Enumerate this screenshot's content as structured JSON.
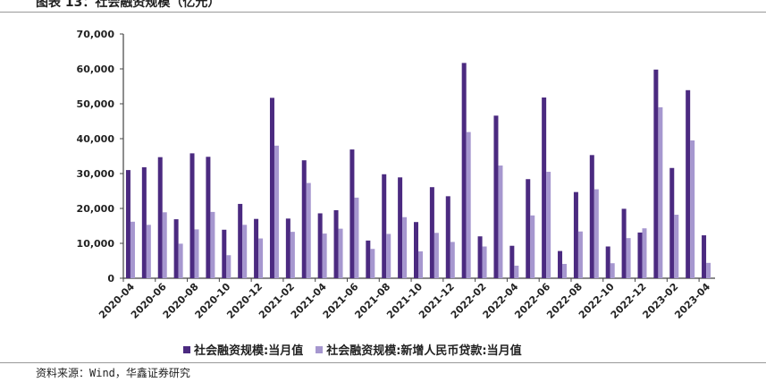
{
  "title": "图表 13：社会融资规模（亿元）",
  "source": "资料来源：Wind，华鑫证券研究",
  "colors": {
    "series1": "#4b2a80",
    "series2": "#a697cf"
  },
  "chart_data": {
    "type": "bar",
    "title": "社会融资规模（亿元）",
    "ylim": [
      0,
      70000
    ],
    "yticks": [
      "0",
      "10,000",
      "20,000",
      "30,000",
      "40,000",
      "50,000",
      "60,000",
      "70,000"
    ],
    "legend_position": "bottom",
    "categories": [
      "2020-04",
      "2020-05",
      "2020-06",
      "2020-07",
      "2020-08",
      "2020-09",
      "2020-10",
      "2020-11",
      "2020-12",
      "2021-01",
      "2021-02",
      "2021-03",
      "2021-04",
      "2021-05",
      "2021-06",
      "2021-07",
      "2021-08",
      "2021-09",
      "2021-10",
      "2021-11",
      "2021-12",
      "2022-01",
      "2022-02",
      "2022-03",
      "2022-04",
      "2022-05",
      "2022-06",
      "2022-07",
      "2022-08",
      "2022-09",
      "2022-10",
      "2022-11",
      "2022-12",
      "2023-01",
      "2023-02",
      "2023-03",
      "2023-04"
    ],
    "series": [
      {
        "name": "社会融资规模:当月值",
        "values": [
          31000,
          31800,
          34700,
          16900,
          35800,
          34800,
          13900,
          21300,
          17000,
          51700,
          17100,
          33800,
          18600,
          19500,
          36900,
          10800,
          29800,
          28900,
          16100,
          26100,
          23500,
          61700,
          12000,
          46600,
          9300,
          28400,
          51800,
          7800,
          24700,
          35300,
          9100,
          19900,
          13100,
          59800,
          31600,
          53900,
          12300
        ]
      },
      {
        "name": "社会融资规模:新增人民币贷款:当月值",
        "values": [
          16200,
          15300,
          18900,
          9900,
          14000,
          19000,
          6600,
          15300,
          11400,
          38000,
          13300,
          27300,
          12800,
          14200,
          23100,
          8400,
          12700,
          17500,
          7700,
          13000,
          10400,
          41900,
          9100,
          32300,
          3600,
          18000,
          30500,
          4100,
          13400,
          25500,
          4300,
          11500,
          14300,
          49000,
          18200,
          39500,
          4400
        ]
      }
    ]
  }
}
